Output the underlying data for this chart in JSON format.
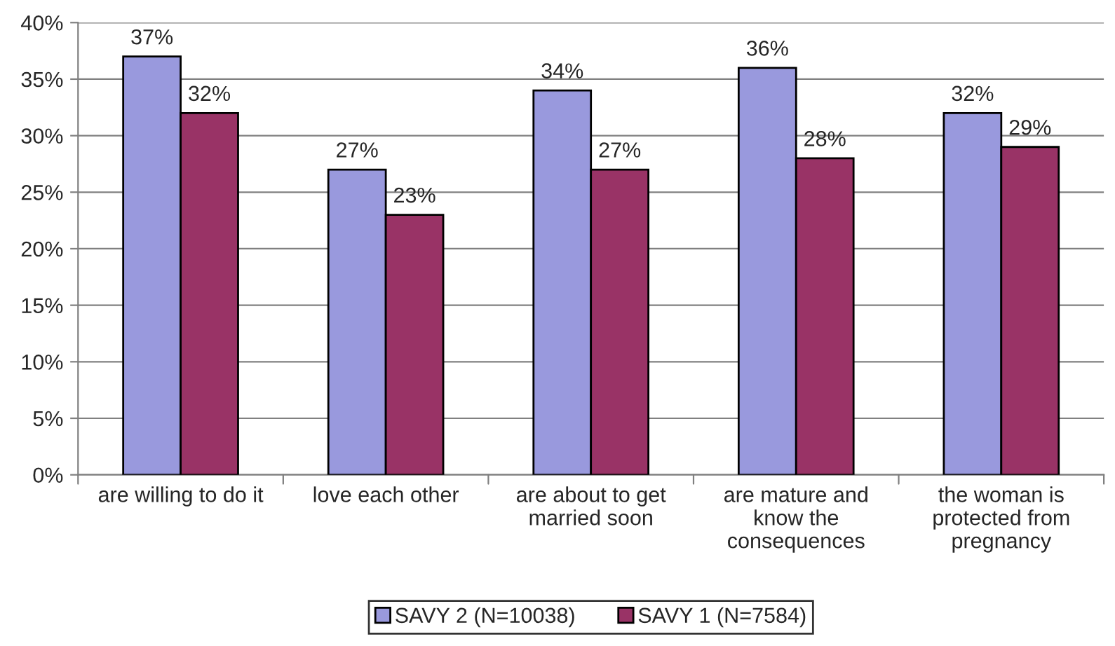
{
  "chart_data": {
    "type": "bar",
    "categories": [
      "are willing to do it",
      "love each other",
      "are about to get\nmarried soon",
      "are mature and\nknow the\nconsequences",
      "the woman is\nprotected from\npregnancy"
    ],
    "series": [
      {
        "name": "SAVY 2 (N=10038)",
        "color": "#9999dd",
        "values": [
          37,
          27,
          34,
          36,
          32
        ],
        "value_labels": [
          "37%",
          "27%",
          "34%",
          "36%",
          "32%"
        ]
      },
      {
        "name": "SAVY 1 (N=7584)",
        "color": "#993366",
        "values": [
          32,
          23,
          27,
          28,
          29
        ],
        "value_labels": [
          "32%",
          "23%",
          "27%",
          "28%",
          "29%"
        ]
      }
    ],
    "ylim": [
      0,
      40
    ],
    "yticks": [
      {
        "value": 0,
        "label": "0%"
      },
      {
        "value": 5,
        "label": "5%"
      },
      {
        "value": 10,
        "label": "10%"
      },
      {
        "value": 15,
        "label": "15%"
      },
      {
        "value": 20,
        "label": "20%"
      },
      {
        "value": 25,
        "label": "25%"
      },
      {
        "value": 30,
        "label": "30%"
      },
      {
        "value": 35,
        "label": "35%"
      },
      {
        "value": 40,
        "label": "40%"
      }
    ],
    "grid": "y",
    "legend": "bottom"
  }
}
